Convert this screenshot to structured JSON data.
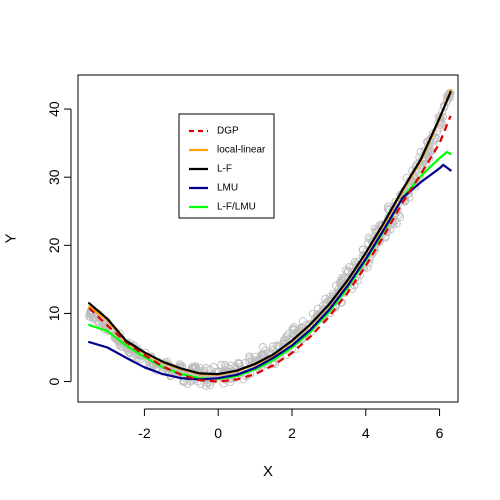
{
  "chart_data": {
    "type": "scatter",
    "title": "",
    "xlabel": "X",
    "ylabel": "Y",
    "xlim": [
      -3.8,
      6.5
    ],
    "ylim": [
      -3,
      45
    ],
    "x_ticks": [
      -2,
      0,
      2,
      4,
      6
    ],
    "y_ticks": [
      0,
      10,
      20,
      30,
      40
    ],
    "grid": false,
    "legend_position": "top-left inside plot",
    "scatter_color": "#bebebe",
    "scatter_band": [
      {
        "x": -3.5,
        "lo": 9.5,
        "hi": 11.5
      },
      {
        "x": -3.0,
        "lo": 7.0,
        "hi": 9.0
      },
      {
        "x": -2.5,
        "lo": 4.3,
        "hi": 6.3
      },
      {
        "x": -2.0,
        "lo": 2.5,
        "hi": 4.5
      },
      {
        "x": -1.5,
        "lo": 1.0,
        "hi": 3.5
      },
      {
        "x": -1.0,
        "lo": -0.3,
        "hi": 2.8
      },
      {
        "x": -0.5,
        "lo": -0.8,
        "hi": 2.5
      },
      {
        "x": 0.0,
        "lo": -0.8,
        "hi": 2.8
      },
      {
        "x": 0.5,
        "lo": -0.3,
        "hi": 3.3
      },
      {
        "x": 1.0,
        "lo": 0.8,
        "hi": 4.5
      },
      {
        "x": 1.5,
        "lo": 2.3,
        "hi": 6.0
      },
      {
        "x": 2.0,
        "lo": 4.0,
        "hi": 8.0
      },
      {
        "x": 2.5,
        "lo": 6.3,
        "hi": 10.5
      },
      {
        "x": 3.0,
        "lo": 9.0,
        "hi": 13.5
      },
      {
        "x": 3.5,
        "lo": 12.2,
        "hi": 17.0
      },
      {
        "x": 4.0,
        "lo": 16.0,
        "hi": 21.0
      },
      {
        "x": 4.5,
        "lo": 20.0,
        "hi": 25.0
      },
      {
        "x": 5.0,
        "lo": 24.5,
        "hi": 29.5
      },
      {
        "x": 5.5,
        "lo": 29.5,
        "hi": 34.0
      },
      {
        "x": 6.0,
        "lo": 36.0,
        "hi": 39.5
      },
      {
        "x": 6.3,
        "lo": 41.5,
        "hi": 43.5
      }
    ],
    "series": [
      {
        "name": "DGP",
        "color": "#e00000",
        "dash": true,
        "x": [
          -3.5,
          -3.0,
          -2.5,
          -2.0,
          -1.5,
          -1.0,
          -0.5,
          0.0,
          0.5,
          1.0,
          1.5,
          2.0,
          2.5,
          3.0,
          3.5,
          4.0,
          4.5,
          5.0,
          5.5,
          6.0,
          6.3
        ],
        "y": [
          10.8,
          8.2,
          5.8,
          3.9,
          2.2,
          1.0,
          0.2,
          0.0,
          0.3,
          1.1,
          2.4,
          4.2,
          6.6,
          9.5,
          13.0,
          17.0,
          21.5,
          26.3,
          30.5,
          35.0,
          39.0
        ]
      },
      {
        "name": "local-linear",
        "color": "#ffa500",
        "dash": false,
        "x": [
          -3.5,
          -3.0,
          -2.5,
          -2.0,
          -1.5,
          -1.0,
          -0.5,
          0.0,
          0.5,
          1.0,
          1.5,
          2.0,
          2.5,
          3.0,
          3.5,
          4.0,
          4.5,
          5.0,
          5.5,
          6.0,
          6.3
        ],
        "y": [
          11.0,
          9.0,
          5.8,
          4.2,
          2.8,
          1.8,
          1.1,
          1.0,
          1.5,
          2.5,
          3.9,
          5.9,
          8.3,
          11.2,
          14.7,
          18.8,
          23.2,
          28.0,
          32.5,
          38.5,
          42.8
        ]
      },
      {
        "name": "L-F",
        "color": "#000000",
        "dash": false,
        "x": [
          -3.5,
          -3.0,
          -2.5,
          -2.0,
          -1.5,
          -1.0,
          -0.5,
          0.0,
          0.5,
          1.0,
          1.5,
          2.0,
          2.5,
          3.0,
          3.5,
          4.0,
          4.5,
          5.0,
          5.5,
          6.0,
          6.3
        ],
        "y": [
          11.5,
          9.2,
          6.0,
          4.3,
          2.9,
          1.9,
          1.2,
          1.1,
          1.6,
          2.6,
          4.0,
          6.0,
          8.4,
          11.3,
          14.8,
          18.9,
          23.4,
          28.2,
          32.7,
          38.7,
          42.5
        ]
      },
      {
        "name": "LMU",
        "color": "#00008b",
        "dash": false,
        "x": [
          -3.5,
          -3.0,
          -2.5,
          -2.0,
          -1.5,
          -1.0,
          -0.5,
          0.0,
          0.5,
          1.0,
          1.5,
          2.0,
          2.5,
          3.0,
          3.5,
          4.0,
          4.5,
          5.0,
          5.5,
          6.0,
          6.1,
          6.3
        ],
        "y": [
          5.8,
          5.0,
          3.5,
          2.1,
          1.1,
          0.5,
          0.3,
          0.5,
          1.0,
          2.0,
          3.5,
          5.3,
          7.6,
          10.5,
          14.0,
          18.0,
          22.4,
          27.0,
          29.3,
          31.3,
          31.8,
          31.0
        ]
      },
      {
        "name": "L-F/LMU",
        "color": "#00ff00",
        "dash": false,
        "x": [
          -3.5,
          -3.0,
          -2.5,
          -2.0,
          -1.5,
          -1.0,
          -0.5,
          0.0,
          0.5,
          1.0,
          1.5,
          2.0,
          2.5,
          3.0,
          3.5,
          4.0,
          4.5,
          5.0,
          5.5,
          6.0,
          6.2,
          6.3
        ],
        "y": [
          8.3,
          7.4,
          5.3,
          3.6,
          2.1,
          1.1,
          0.5,
          0.4,
          0.8,
          1.8,
          3.2,
          5.0,
          7.3,
          10.2,
          13.7,
          17.8,
          22.2,
          27.0,
          30.2,
          32.8,
          33.7,
          33.4
        ]
      }
    ]
  }
}
